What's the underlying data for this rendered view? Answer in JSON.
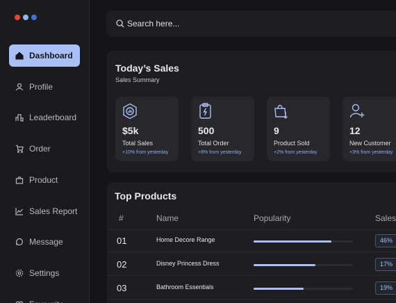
{
  "sidebar": {
    "nav": [
      {
        "label": "Dashboard",
        "active": true
      },
      {
        "label": "Profile",
        "active": false
      },
      {
        "label": "Leaderboard",
        "active": false
      },
      {
        "label": "Order",
        "active": false
      },
      {
        "label": "Product",
        "active": false
      },
      {
        "label": "Sales Report",
        "active": false
      },
      {
        "label": "Message",
        "active": false
      },
      {
        "label": "Settings",
        "active": false
      },
      {
        "label": "Favourite",
        "active": false
      }
    ]
  },
  "search": {
    "placeholder": "Search here..."
  },
  "sales": {
    "title": "Today’s Sales",
    "subtitle": "Sales Summary",
    "cards": [
      {
        "value": "$5k",
        "label": "Total Sales",
        "change": "+10% from yesterday"
      },
      {
        "value": "500",
        "label": "Total Order",
        "change": "+8% from yesterday"
      },
      {
        "value": "9",
        "label": "Product Sold",
        "change": "+2% from yesterday"
      },
      {
        "value": "12",
        "label": "New Customer",
        "change": "+3% from yesterday"
      }
    ]
  },
  "products": {
    "title": "Top Products",
    "columns": [
      "#",
      "Name",
      "Popularity",
      "Sales"
    ],
    "rows": [
      {
        "rank": "01",
        "name": "Home Decore Range",
        "popularity": 78,
        "sales": "46%"
      },
      {
        "rank": "02",
        "name": "Disney Princess Dress",
        "popularity": 62,
        "sales": "17%"
      },
      {
        "rank": "03",
        "name": "Bathroom Essentials",
        "popularity": 50,
        "sales": "19%"
      }
    ]
  }
}
